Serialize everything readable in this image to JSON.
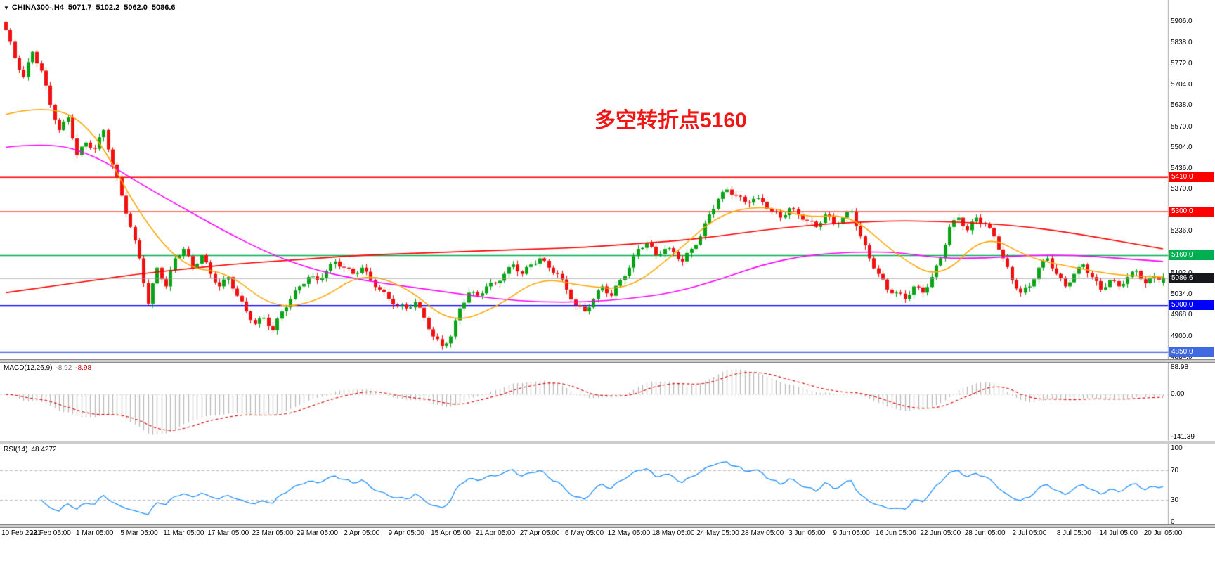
{
  "header": {
    "dropdown_icon": "▼",
    "symbol_timeframe": "CHINA300-,H4",
    "open": "5071.7",
    "high": "5102.2",
    "low": "5062.0",
    "close": "5086.6"
  },
  "annotation": {
    "text": "多空转折点5160",
    "color": "#f01616"
  },
  "chart_data": {
    "type": "candlestick",
    "title": "CHINA300-,H4",
    "ylim": [
      4834,
      5906
    ],
    "x_labels": [
      "10 Feb 2021",
      "23 Feb 05:00",
      "1 Mar 05:00",
      "5 Mar 05:00",
      "11 Mar 05:00",
      "17 Mar 05:00",
      "23 Mar 05:00",
      "29 Mar 05:00",
      "2 Apr 05:00",
      "9 Apr 05:00",
      "15 Apr 05:00",
      "21 Apr 05:00",
      "27 Apr 05:00",
      "6 May 05:00",
      "12 May 05:00",
      "18 May 05:00",
      "24 May 05:00",
      "28 May 05:00",
      "3 Jun 05:00",
      "9 Jun 05:00",
      "16 Jun 05:00",
      "22 Jun 05:00",
      "28 Jun 05:00",
      "2 Jul 05:00",
      "8 Jul 05:00",
      "14 Jul 05:00",
      "20 Jul 05:00"
    ],
    "closes": [
      5880,
      5790,
      5730,
      5810,
      5750,
      5640,
      5560,
      5600,
      5480,
      5520,
      5500,
      5560,
      5450,
      5350,
      5250,
      5150,
      5005,
      5120,
      5060,
      5150,
      5180,
      5120,
      5160,
      5100,
      5060,
      5090,
      5030,
      4980,
      4940,
      4960,
      4920,
      4980,
      5020,
      5060,
      5090,
      5080,
      5110,
      5140,
      5120,
      5100,
      5120,
      5080,
      5050,
      5020,
      5000,
      4990,
      5010,
      4960,
      4900,
      4870,
      4900,
      4990,
      5040,
      5030,
      5060,
      5070,
      5100,
      5130,
      5100,
      5130,
      5150,
      5120,
      5100,
      5050,
      5000,
      4980,
      5020,
      5060,
      5030,
      5080,
      5120,
      5180,
      5200,
      5160,
      5180,
      5170,
      5140,
      5180,
      5220,
      5290,
      5340,
      5370,
      5350,
      5330,
      5340,
      5330,
      5300,
      5280,
      5310,
      5290,
      5270,
      5250,
      5290,
      5260,
      5280,
      5300,
      5220,
      5150,
      5100,
      5050,
      5040,
      5020,
      5060,
      5040,
      5090,
      5150,
      5250,
      5280,
      5240,
      5280,
      5260,
      5220,
      5150,
      5080,
      5040,
      5060,
      5120,
      5150,
      5100,
      5060,
      5100,
      5130,
      5090,
      5050,
      5080,
      5060,
      5090,
      5110,
      5070,
      5090,
      5086.6
    ],
    "last_bar": {
      "open": 5071.7,
      "high": 5102.2,
      "low": 5062.0,
      "close": 5086.6
    },
    "colors": {
      "up": "#0aa216",
      "down": "#f01010"
    },
    "price_ticks": [
      {
        "label": "5906.0",
        "value": 5906
      },
      {
        "label": "5838.0",
        "value": 5838
      },
      {
        "label": "5772.0",
        "value": 5772
      },
      {
        "label": "5704.0",
        "value": 5704
      },
      {
        "label": "5638.0",
        "value": 5638
      },
      {
        "label": "5570.0",
        "value": 5570
      },
      {
        "label": "5504.0",
        "value": 5504
      },
      {
        "label": "5436.0",
        "value": 5436
      },
      {
        "label": "5370.0",
        "value": 5370
      },
      {
        "label": "5236.0",
        "value": 5236
      },
      {
        "label": "5102.0",
        "value": 5102
      },
      {
        "label": "5034.0",
        "value": 5034
      },
      {
        "label": "4968.0",
        "value": 4968
      },
      {
        "label": "4900.0",
        "value": 4900
      },
      {
        "label": "4834.0",
        "value": 4834
      }
    ],
    "levels": [
      {
        "value": 5410,
        "label": "5410.0",
        "color": "#ff0000"
      },
      {
        "value": 5300,
        "label": "5300.0",
        "color": "#ff0000"
      },
      {
        "value": 5160,
        "label": "5160.0",
        "color": "#00b050"
      },
      {
        "value": 5000,
        "label": "5000.0",
        "color": "#0000ff"
      },
      {
        "value": 4850,
        "label": "4850.0",
        "color": "#4169e1"
      }
    ],
    "bid": {
      "value": 5086.6,
      "label": "5086.6",
      "line_color": "#9c9c9c",
      "badge_color": "#17181b"
    },
    "series": [
      {
        "name": "ma-fast",
        "color": "#ffa500",
        "values": [
          5610,
          5645,
          5560,
          5290,
          5120,
          5105,
          4990,
          5010,
          5105,
          5060,
          4940,
          4990,
          5090,
          5060,
          5050,
          5160,
          5290,
          5320,
          5280,
          5290,
          5160,
          5080,
          5230,
          5150,
          5120,
          5095,
          5090
        ]
      },
      {
        "name": "ma-medium",
        "color": "#ff00ff",
        "values": [
          5505,
          5520,
          5480,
          5390,
          5310,
          5230,
          5160,
          5110,
          5080,
          5060,
          5040,
          5020,
          5010,
          5010,
          5020,
          5040,
          5080,
          5130,
          5160,
          5170,
          5170,
          5150,
          5150,
          5160,
          5160,
          5150,
          5140
        ]
      },
      {
        "name": "ma-slow",
        "color": "#ff0000",
        "values": [
          5040,
          5060,
          5080,
          5100,
          5115,
          5130,
          5140,
          5150,
          5160,
          5165,
          5170,
          5175,
          5180,
          5185,
          5195,
          5205,
          5220,
          5240,
          5255,
          5265,
          5270,
          5268,
          5262,
          5250,
          5230,
          5205,
          5180
        ]
      }
    ]
  },
  "macd": {
    "name": "MACD(12,26,9)",
    "fast": 12,
    "slow": 26,
    "signal": 9,
    "value_main": "-8.92",
    "value_signal": "-8.98",
    "axis_max": 88.98,
    "axis_min": -141.39,
    "axis_labels": [
      "88.98",
      "0.00",
      "-141.39"
    ],
    "axis_values": [
      88.98,
      0,
      -141.39
    ],
    "colors": {
      "histogram": "#b6b6b6",
      "signal": "#e00000"
    }
  },
  "rsi": {
    "name": "RSI(14)",
    "period": 14,
    "value": "48.4272",
    "levels": [
      70,
      30
    ],
    "axis_labels": [
      "100",
      "70",
      "30",
      "0"
    ],
    "axis_values": [
      100,
      70,
      30,
      0
    ],
    "color": "#1f8fff"
  }
}
